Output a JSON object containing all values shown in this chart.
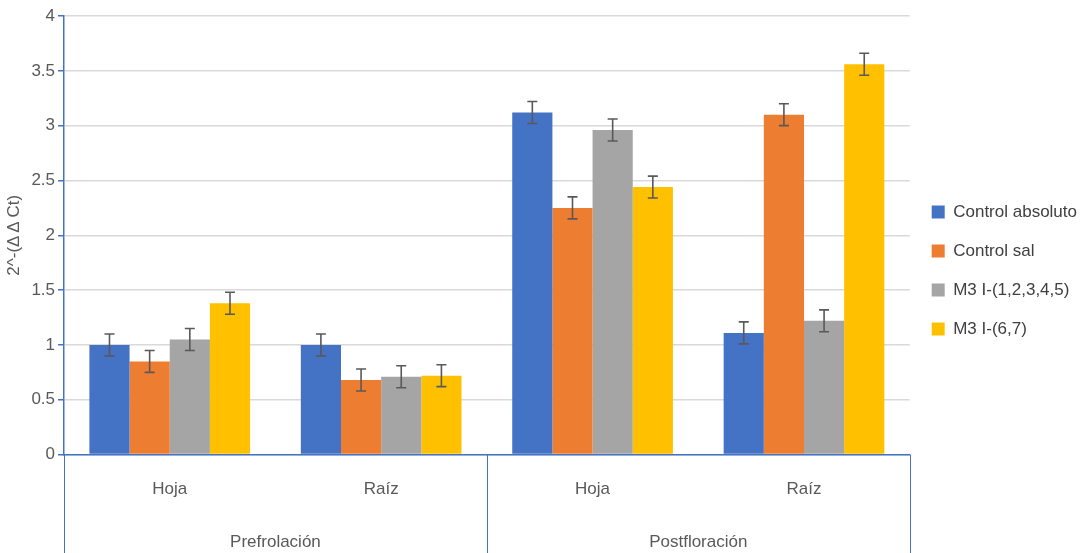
{
  "chart_data": {
    "type": "bar",
    "ylabel": "2^-(Δ Δ Ct)",
    "categories": [
      "Hoja",
      "Raíz",
      "Hoja",
      "Raíz"
    ],
    "annotations": [
      "Prefrolación",
      "Postfloración"
    ],
    "series": [
      {
        "name": "Control absoluto",
        "color": "#4472c4",
        "values": [
          1.0,
          1.0,
          3.12,
          1.11
        ],
        "errors": [
          0.1,
          0.1,
          0.1,
          0.1
        ]
      },
      {
        "name": "Control sal",
        "color": "#ed7d31",
        "values": [
          0.85,
          0.68,
          2.25,
          3.1
        ],
        "errors": [
          0.1,
          0.1,
          0.1,
          0.1
        ]
      },
      {
        "name": "M3 I-(1,2,3,4,5)",
        "color": "#a5a5a5",
        "values": [
          1.05,
          0.71,
          2.96,
          1.22
        ],
        "errors": [
          0.1,
          0.1,
          0.1,
          0.1
        ]
      },
      {
        "name": "M3 I-(6,7)",
        "color": "#ffc000",
        "values": [
          1.38,
          0.72,
          2.44,
          3.56
        ],
        "errors": [
          0.1,
          0.1,
          0.1,
          0.1
        ]
      }
    ],
    "ylim": [
      0,
      4
    ],
    "yticks": [
      0,
      0.5,
      1,
      1.5,
      2,
      2.5,
      3,
      3.5,
      4
    ],
    "grid": "y",
    "legend": "right"
  }
}
